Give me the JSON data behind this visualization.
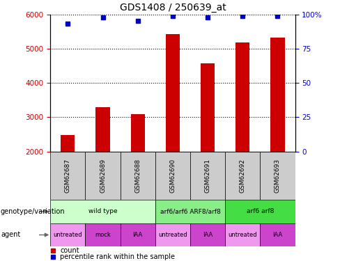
{
  "title": "GDS1408 / 250639_at",
  "samples": [
    "GSM62687",
    "GSM62689",
    "GSM62688",
    "GSM62690",
    "GSM62691",
    "GSM62692",
    "GSM62693"
  ],
  "bar_values": [
    2480,
    3300,
    3080,
    5430,
    4580,
    5180,
    5330
  ],
  "percentile_values": [
    93,
    98,
    95,
    99,
    98,
    99,
    99
  ],
  "bar_color": "#cc0000",
  "percentile_color": "#0000cc",
  "ylim_left": [
    2000,
    6000
  ],
  "ylim_right": [
    0,
    100
  ],
  "yticks_left": [
    2000,
    3000,
    4000,
    5000,
    6000
  ],
  "yticks_right": [
    0,
    25,
    50,
    75,
    100
  ],
  "ytick_right_labels": [
    "0",
    "25",
    "50",
    "75",
    "100%"
  ],
  "genotype_groups": [
    {
      "label": "wild type",
      "span": [
        0,
        3
      ],
      "color": "#ccffcc"
    },
    {
      "label": "arf6/arf6 ARF8/arf8",
      "span": [
        3,
        5
      ],
      "color": "#88ee88"
    },
    {
      "label": "arf6 arf8",
      "span": [
        5,
        7
      ],
      "color": "#44dd44"
    }
  ],
  "agent_labels": [
    "untreated",
    "mock",
    "IAA",
    "untreated",
    "IAA",
    "untreated",
    "IAA"
  ],
  "agent_colors": [
    "#ee99ee",
    "#cc44cc",
    "#cc44cc",
    "#ee99ee",
    "#cc44cc",
    "#ee99ee",
    "#cc44cc"
  ],
  "sample_bg_color": "#cccccc",
  "bar_width": 0.4,
  "legend_count_color": "#cc0000",
  "legend_percentile_color": "#0000cc"
}
